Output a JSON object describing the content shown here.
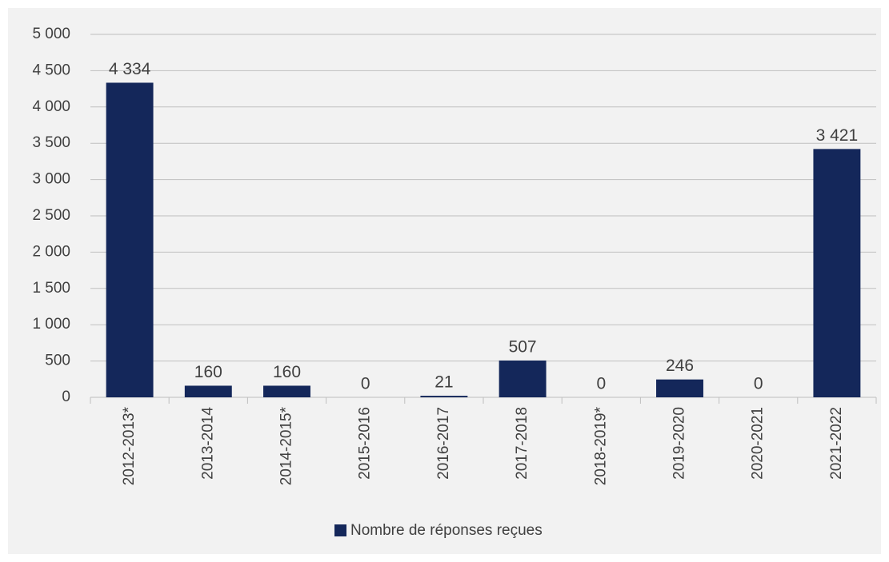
{
  "chart_data": {
    "type": "bar",
    "categories": [
      "2012-2013*",
      "2013-2014",
      "2014-2015*",
      "2015-2016",
      "2016-2017",
      "2017-2018",
      "2018-2019*",
      "2019-2020",
      "2020-2021",
      "2021-2022"
    ],
    "series": [
      {
        "name": "Nombre de réponses reçues",
        "color": "#14275a",
        "values": [
          4334,
          160,
          160,
          0,
          21,
          507,
          0,
          246,
          0,
          3421
        ],
        "value_labels": [
          "4 334",
          "160",
          "160",
          "0",
          "21",
          "507",
          "0",
          "246",
          "0",
          "3 421"
        ]
      }
    ],
    "ylim": [
      0,
      5000
    ],
    "yticks": [
      0,
      500,
      {
        "value": 1000,
        "label": "1 000"
      },
      {
        "value": 1500,
        "label": "1 500"
      },
      {
        "value": 2000,
        "label": "2 000"
      },
      {
        "value": 2500,
        "label": "2 500"
      },
      {
        "value": 3000,
        "label": "3 000"
      },
      {
        "value": 3500,
        "label": "3 500"
      },
      {
        "value": 4000,
        "label": "4 000"
      },
      {
        "value": 4500,
        "label": "4 500"
      },
      {
        "value": 5000,
        "label": "5 000"
      }
    ],
    "grid": true,
    "legend": "bottom"
  }
}
